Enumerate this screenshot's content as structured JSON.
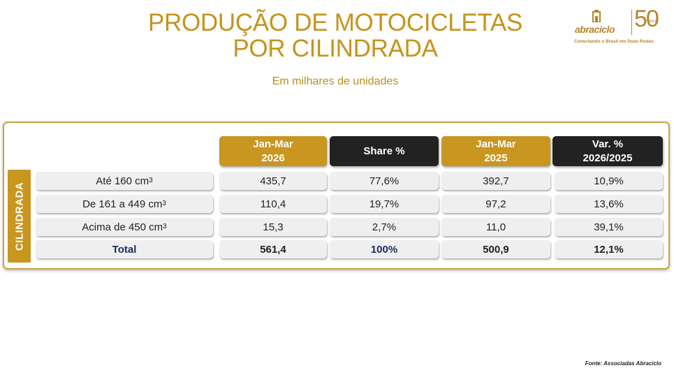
{
  "title_line1": "PRODUÇÃO DE MOTOCICLETAS",
  "title_line2": "POR CILINDRADA",
  "subtitle": "Em milhares de unidades",
  "logo": {
    "name": "abraciclo",
    "number": "50",
    "anos": "Anos",
    "tagline": "Conectando o Brasil em Duas Rodas"
  },
  "side_label": "CILINDRADA",
  "headers": [
    {
      "line1": "Jan-Mar",
      "line2": "2026"
    },
    {
      "line1": "Share %",
      "line2": ""
    },
    {
      "line1": "Jan-Mar",
      "line2": "2025"
    },
    {
      "line1": "Var. %",
      "line2": "2026/2025"
    }
  ],
  "rows": [
    {
      "label": "Até 160 cm",
      "sup": "3",
      "c1": "435,7",
      "c2": "77,6%",
      "c3": "392,7",
      "c4": "10,9%"
    },
    {
      "label": "De 161 a 449 cm",
      "sup": "3",
      "c1": "110,4",
      "c2": "19,7%",
      "c3": "97,2",
      "c4": "13,6%"
    },
    {
      "label": "Acima de 450 cm",
      "sup": "3",
      "c1": "15,3",
      "c2": "2,7%",
      "c3": "11,0",
      "c4": "39,1%"
    }
  ],
  "total": {
    "label": "Total",
    "c1": "561,4",
    "c2": "100%",
    "c3": "500,9",
    "c4": "12,1%"
  },
  "source": "Fonte: Associadas Abraciclo",
  "colors": {
    "gold": "#c9961f",
    "dark": "#222222",
    "title": "#c4941c",
    "navy": "#1c2b5e"
  }
}
